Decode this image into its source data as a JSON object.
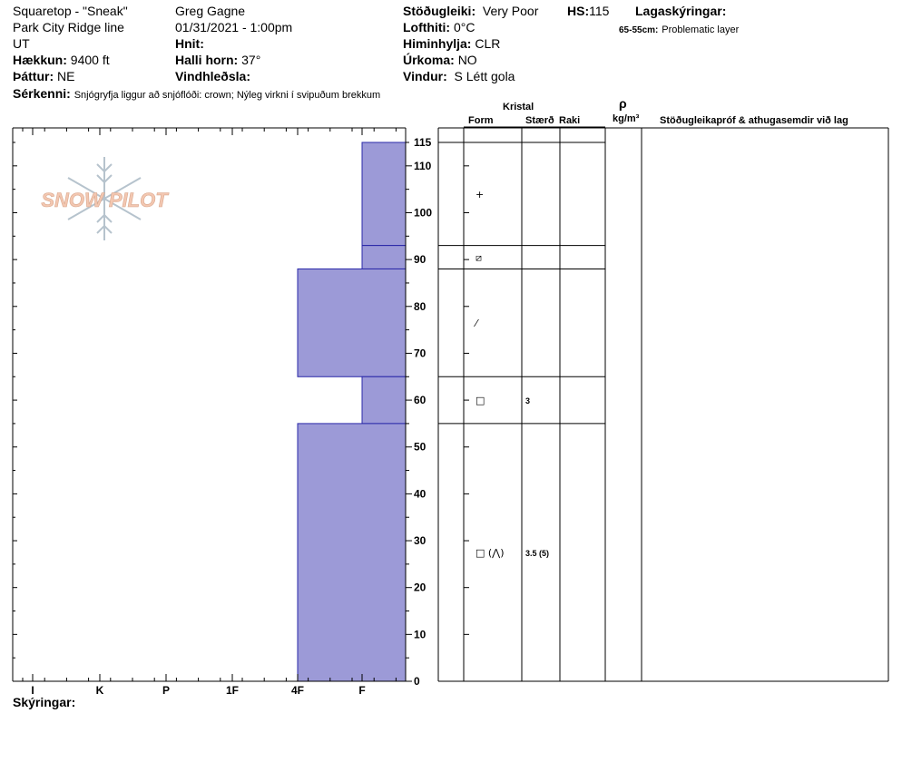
{
  "header": {
    "location": "Squaretop - \"Sneak\"",
    "range": "Park City Ridge line",
    "state": "UT",
    "elevation_label": "Hækkun:",
    "elevation": "9400 ft",
    "aspect_label": "Þáttur:",
    "aspect": "NE",
    "features_label": "Sérkenni:",
    "features": "Snjógryfja liggur að snjóflóði: crown;  Nýleg virkni í svipuðum brekkum",
    "observer": "Greg Gagne",
    "datetime": "01/31/2021 - 1:00pm",
    "coords_label": "Hnit:",
    "slope_label": "Halli horn:",
    "slope": "37°",
    "wind_loading_label": "Vindhleðsla:",
    "stability_label": "Stöðugleiki:",
    "stability": "Very Poor",
    "hs_label": "HS:",
    "hs": "115",
    "air_temp_label": "Lofthiti:",
    "air_temp": "0°C",
    "sky_label": "Himinhylja:",
    "sky": "CLR",
    "precip_label": "Úrkoma:",
    "precip": "NO",
    "wind_label": "Vindur:",
    "wind": "S  Létt gola",
    "layer_notes_label": "Lagaskýringar:",
    "layer_note_range": "65-55cm:",
    "layer_note_text": "Problematic layer"
  },
  "footer": {
    "notes_label": "Skýringar:"
  },
  "logo": {
    "text": "SNOW PILOT",
    "icon": "snowflake-icon"
  },
  "table_headers": {
    "crystal": "Kristal",
    "form": "Form",
    "size": "Stærð",
    "moisture": "Raki",
    "density_symbol": "ρ",
    "density_unit": "kg/m³",
    "tests": "Stöðugleikapróf & athugasemdir við lag"
  },
  "colors": {
    "layer_fill": "#9c9ad7",
    "layer_stroke": "#2a28a8"
  },
  "chart_data": {
    "type": "bar",
    "hand_hardness_scale": [
      "I",
      "K",
      "P",
      "1F",
      "4F",
      "F"
    ],
    "depth_ticks": [
      0,
      10,
      20,
      30,
      40,
      50,
      60,
      70,
      80,
      90,
      100,
      110,
      115
    ],
    "depth_range": [
      0,
      115
    ],
    "layers": [
      {
        "top": 115,
        "bottom": 93,
        "hardness": "F",
        "form": "+",
        "size": "",
        "moisture": ""
      },
      {
        "top": 93,
        "bottom": 88,
        "hardness": "F",
        "form": "⧄",
        "size": "",
        "moisture": ""
      },
      {
        "top": 88,
        "bottom": 65,
        "hardness": "4F",
        "form": "⁄",
        "size": "",
        "moisture": ""
      },
      {
        "top": 65,
        "bottom": 55,
        "hardness": "F",
        "form": "□",
        "size": "3",
        "moisture": ""
      },
      {
        "top": 55,
        "bottom": 0,
        "hardness": "4F",
        "form": "□ (⋀)",
        "size": "3.5 (5)",
        "moisture": ""
      }
    ]
  }
}
